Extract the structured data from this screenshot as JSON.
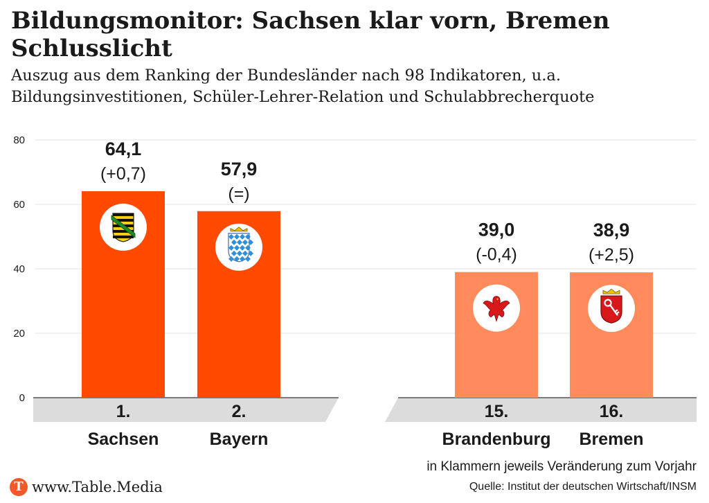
{
  "header": {
    "title": "Bildungsmonitor: Sachsen klar vorn, Bremen Schlusslicht",
    "subtitle": "Auszug aus dem Ranking der Bundesländer nach 98 Indikatoren, u.a. Bildungsinvestitionen, Schüler-Lehrer-Relation und Schulabbrecherquote"
  },
  "footer": {
    "note": "in Klammern jeweils Veränderung zum Vorjahr",
    "source": "Quelle: Institut der deutschen Wirtschaft/INSM",
    "brand": "www.Table.Media",
    "brand_initial": "T"
  },
  "colors": {
    "top_bars": "#ff4a00",
    "bottom_bars": "#ff8a5c",
    "rank_band": "#dcdcdc",
    "gridline": "#e3e3e3",
    "text": "#1a1a1a"
  },
  "chart_data": {
    "type": "bar",
    "categories": [
      "Sachsen",
      "Bayern",
      "Brandenburg",
      "Bremen"
    ],
    "values": [
      64.1,
      57.9,
      39.0,
      38.9
    ],
    "value_labels": [
      "64,1",
      "57,9",
      "39,0",
      "38,9"
    ],
    "change_labels": [
      "(+0,7)",
      "(=)",
      "(-0,4)",
      "(+2,5)"
    ],
    "ranks": [
      "1.",
      "2.",
      "15.",
      "16."
    ],
    "emblems": [
      "saxony-coat-of-arms-icon",
      "bavaria-coat-of-arms-icon",
      "brandenburg-eagle-icon",
      "bremen-key-icon"
    ],
    "groups": [
      "top",
      "top",
      "bottom",
      "bottom"
    ],
    "title": "Bildungsmonitor: Sachsen klar vorn, Bremen Schlusslicht",
    "xlabel": "",
    "ylabel": "",
    "ylim": [
      0,
      80
    ],
    "yticks": [
      0,
      20,
      40,
      60,
      80
    ],
    "grid": true,
    "legend": "none"
  }
}
